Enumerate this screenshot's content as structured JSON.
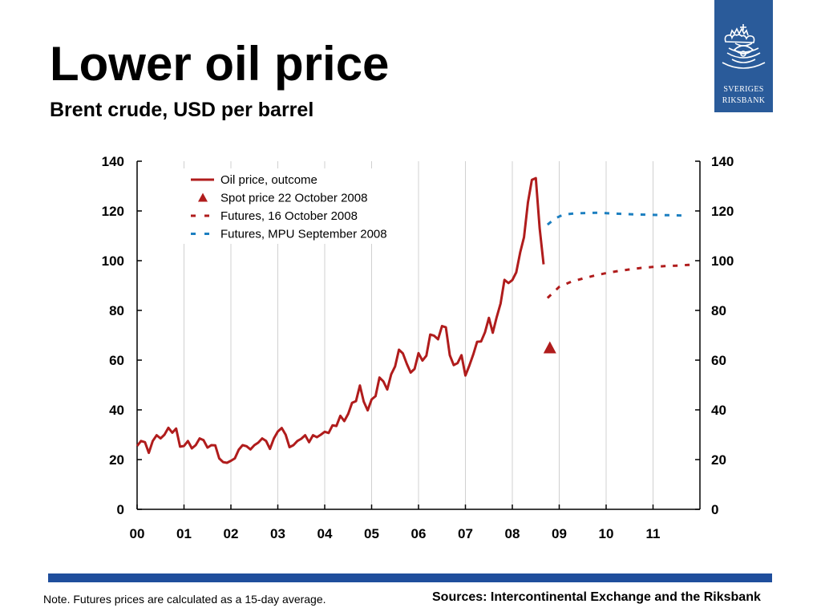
{
  "title": "Lower oil price",
  "subtitle": "Brent crude, USD per barrel",
  "logo": {
    "line1": "SVERIGES",
    "line2": "RIKSBANK"
  },
  "note": "Note. Futures prices are calculated as a 15-day average.",
  "sources": "Sources: Intercontinental Exchange and the Riksbank",
  "colors": {
    "outcome": "#b01c1c",
    "futures_oct": "#b01c1c",
    "futures_mpu": "#1c7fc0",
    "bar": "#1f4e9c",
    "logo": "#2a5b9a"
  },
  "chart_data": {
    "type": "line",
    "title": "",
    "xlabel": "",
    "ylabel": "",
    "ylim": [
      0,
      140
    ],
    "yticks": [
      0,
      20,
      40,
      60,
      80,
      100,
      120,
      140
    ],
    "xlim": [
      2000,
      2012
    ],
    "xtick_labels": [
      "00",
      "01",
      "02",
      "03",
      "04",
      "05",
      "06",
      "07",
      "08",
      "09",
      "10",
      "11"
    ],
    "y_axis_both_sides": true,
    "grid": "vertical",
    "legend_position": "top-left",
    "series": [
      {
        "name": "Oil price, outcome",
        "style": "solid",
        "color": "#b01c1c",
        "points": [
          [
            2000.0,
            25.5
          ],
          [
            2000.083,
            27.5
          ],
          [
            2000.167,
            27
          ],
          [
            2000.25,
            22.7
          ],
          [
            2000.333,
            27.5
          ],
          [
            2000.417,
            29.8
          ],
          [
            2000.5,
            28.5
          ],
          [
            2000.583,
            30.0
          ],
          [
            2000.667,
            32.8
          ],
          [
            2000.75,
            30.8
          ],
          [
            2000.833,
            32.5
          ],
          [
            2000.917,
            25.2
          ],
          [
            2001.0,
            25.5
          ],
          [
            2001.083,
            27.5
          ],
          [
            2001.167,
            24.5
          ],
          [
            2001.25,
            25.8
          ],
          [
            2001.333,
            28.5
          ],
          [
            2001.417,
            27.8
          ],
          [
            2001.5,
            24.8
          ],
          [
            2001.583,
            25.8
          ],
          [
            2001.667,
            25.7
          ],
          [
            2001.75,
            20.5
          ],
          [
            2001.833,
            19.0
          ],
          [
            2001.917,
            18.7
          ],
          [
            2002.0,
            19.5
          ],
          [
            2002.083,
            20.5
          ],
          [
            2002.167,
            24.0
          ],
          [
            2002.25,
            25.8
          ],
          [
            2002.333,
            25.4
          ],
          [
            2002.417,
            24.1
          ],
          [
            2002.5,
            25.8
          ],
          [
            2002.583,
            26.8
          ],
          [
            2002.667,
            28.5
          ],
          [
            2002.75,
            27.5
          ],
          [
            2002.833,
            24.3
          ],
          [
            2002.917,
            28.5
          ],
          [
            2003.0,
            31.3
          ],
          [
            2003.083,
            32.7
          ],
          [
            2003.167,
            30.0
          ],
          [
            2003.25,
            25.0
          ],
          [
            2003.333,
            25.8
          ],
          [
            2003.417,
            27.5
          ],
          [
            2003.5,
            28.4
          ],
          [
            2003.583,
            29.8
          ],
          [
            2003.667,
            27.0
          ],
          [
            2003.75,
            29.8
          ],
          [
            2003.833,
            29.0
          ],
          [
            2003.917,
            30.0
          ],
          [
            2004.0,
            31.2
          ],
          [
            2004.083,
            30.7
          ],
          [
            2004.167,
            33.8
          ],
          [
            2004.25,
            33.5
          ],
          [
            2004.333,
            37.6
          ],
          [
            2004.417,
            35.5
          ],
          [
            2004.5,
            38.4
          ],
          [
            2004.583,
            42.8
          ],
          [
            2004.667,
            43.5
          ],
          [
            2004.75,
            49.8
          ],
          [
            2004.833,
            43.3
          ],
          [
            2004.917,
            39.8
          ],
          [
            2005.0,
            44.2
          ],
          [
            2005.083,
            45.5
          ],
          [
            2005.167,
            53.0
          ],
          [
            2005.25,
            51.5
          ],
          [
            2005.333,
            48.2
          ],
          [
            2005.417,
            54.3
          ],
          [
            2005.5,
            57.5
          ],
          [
            2005.583,
            64.2
          ],
          [
            2005.667,
            62.7
          ],
          [
            2005.75,
            58.5
          ],
          [
            2005.833,
            55.0
          ],
          [
            2005.917,
            56.5
          ],
          [
            2006.0,
            62.8
          ],
          [
            2006.083,
            59.8
          ],
          [
            2006.167,
            61.8
          ],
          [
            2006.25,
            70.3
          ],
          [
            2006.333,
            69.8
          ],
          [
            2006.417,
            68.4
          ],
          [
            2006.5,
            73.7
          ],
          [
            2006.583,
            73.2
          ],
          [
            2006.667,
            62.0
          ],
          [
            2006.75,
            58.0
          ],
          [
            2006.833,
            58.8
          ],
          [
            2006.917,
            62.0
          ],
          [
            2007.0,
            53.8
          ],
          [
            2007.083,
            57.8
          ],
          [
            2007.167,
            62.3
          ],
          [
            2007.25,
            67.4
          ],
          [
            2007.333,
            67.5
          ],
          [
            2007.417,
            71.2
          ],
          [
            2007.5,
            77.0
          ],
          [
            2007.583,
            71.0
          ],
          [
            2007.667,
            77.3
          ],
          [
            2007.75,
            82.8
          ],
          [
            2007.833,
            92.3
          ],
          [
            2007.917,
            91.0
          ],
          [
            2008.0,
            92.2
          ],
          [
            2008.083,
            95.3
          ],
          [
            2008.167,
            103.3
          ],
          [
            2008.25,
            109.5
          ],
          [
            2008.333,
            123.5
          ],
          [
            2008.417,
            132.5
          ],
          [
            2008.5,
            133.2
          ],
          [
            2008.583,
            113.0
          ],
          [
            2008.667,
            98.5
          ]
        ]
      },
      {
        "name": "Spot price 22 October 2008",
        "style": "marker-triangle",
        "color": "#b01c1c",
        "points": [
          [
            2008.8,
            65.0
          ]
        ]
      },
      {
        "name": "Futures, 16 October 2008",
        "style": "dashed",
        "color": "#b01c1c",
        "points": [
          [
            2008.75,
            85.0
          ],
          [
            2009.0,
            89.5
          ],
          [
            2009.25,
            91.5
          ],
          [
            2009.5,
            92.8
          ],
          [
            2009.75,
            94.0
          ],
          [
            2010.0,
            95.0
          ],
          [
            2010.25,
            95.8
          ],
          [
            2010.5,
            96.5
          ],
          [
            2010.75,
            97.1
          ],
          [
            2011.0,
            97.5
          ],
          [
            2011.25,
            97.8
          ],
          [
            2011.5,
            98.0
          ],
          [
            2011.75,
            98.3
          ],
          [
            2011.9,
            98.4
          ]
        ]
      },
      {
        "name": "Futures, MPU September 2008",
        "style": "dashed",
        "color": "#1c7fc0",
        "points": [
          [
            2008.75,
            114.5
          ],
          [
            2008.917,
            117.0
          ],
          [
            2009.083,
            118.5
          ],
          [
            2009.333,
            119.0
          ],
          [
            2009.583,
            119.2
          ],
          [
            2009.833,
            119.3
          ],
          [
            2010.083,
            119.0
          ],
          [
            2010.333,
            118.8
          ],
          [
            2010.583,
            118.6
          ],
          [
            2010.833,
            118.5
          ],
          [
            2011.083,
            118.4
          ],
          [
            2011.333,
            118.3
          ],
          [
            2011.583,
            118.2
          ],
          [
            2011.75,
            118.2
          ]
        ]
      }
    ]
  }
}
